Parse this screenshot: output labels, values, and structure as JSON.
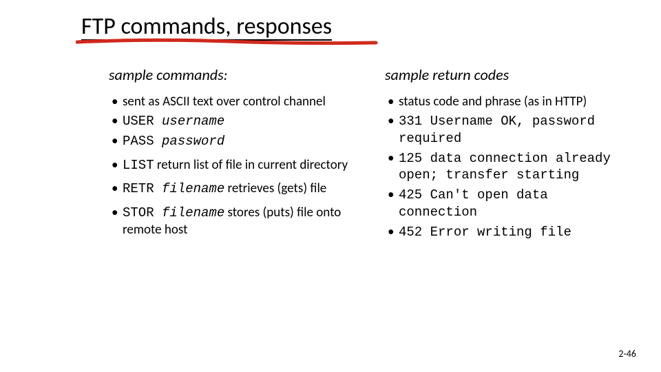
{
  "title": "FTP commands, responses",
  "underline": {
    "color": "#d02a1e",
    "stroke_width": 4
  },
  "left": {
    "heading": "sample commands:",
    "items": [
      {
        "plain": "sent as ASCII text over control channel"
      },
      {
        "mono_pre": "USER ",
        "mono_ital": "username"
      },
      {
        "mono_pre": "PASS ",
        "mono_ital": "password"
      },
      {
        "mono_pre": "LIST",
        "plain_after": " return list of file in current directory",
        "spaced": true
      },
      {
        "mono_pre": "RETR ",
        "mono_ital": "filename",
        "plain_after": " retrieves (gets) file",
        "spaced": true
      },
      {
        "mono_pre": "STOR ",
        "mono_ital": "filename",
        "plain_after": " stores (puts) file onto remote host",
        "spaced": true
      }
    ]
  },
  "right": {
    "heading": "sample return codes",
    "items": [
      {
        "plain": "status code and phrase (as in HTTP)"
      },
      {
        "mono": "331 Username OK, password required"
      },
      {
        "mono": "125 data connection already open; transfer starting"
      },
      {
        "mono": "425 Can't open data connection"
      },
      {
        "mono": "452 Error writing file"
      }
    ]
  },
  "page_number": "2-46",
  "colors": {
    "text": "#000000",
    "background": "#ffffff"
  },
  "fonts": {
    "title_size": 34,
    "heading_size": 22,
    "body_size": 19,
    "mono_family": "Courier New"
  }
}
